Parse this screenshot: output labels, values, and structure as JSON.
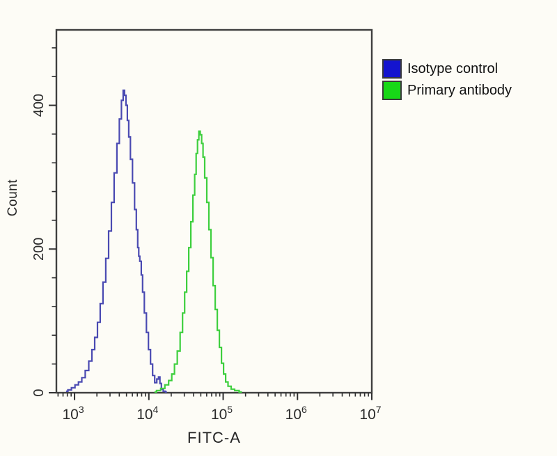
{
  "page": {
    "background": "#fdfcf6"
  },
  "axes": {
    "frame_color": "#3f3f3f",
    "tick_color": "#303030",
    "tick_label_color": "#2b2b2b"
  },
  "legend": {
    "border_color": "#3a3a3a",
    "items": [
      {
        "label": "Isotype control",
        "color": "#1414cf"
      },
      {
        "label": "Primary antibody",
        "color": "#17d817"
      }
    ]
  },
  "chart_data": {
    "type": "line",
    "subtype": "flow-cytometry-histogram-overlay",
    "title": "",
    "xlabel": "FITC-A",
    "ylabel": "Count",
    "x_scale": "log10",
    "xlim": [
      570,
      10000000
    ],
    "x_tick_exponents": [
      3,
      4,
      5,
      6,
      7
    ],
    "ylim": [
      0,
      505
    ],
    "y_major_ticks": [
      0,
      200,
      400
    ],
    "y_minor_tick_step": 40,
    "grid": false,
    "legend_position": "outside-top-right",
    "series": [
      {
        "name": "Isotype control",
        "color": "#4a4ab2",
        "x": [
          770,
          860,
          960,
          1070,
          1190,
          1320,
          1470,
          1640,
          1790,
          1950,
          2120,
          2310,
          2520,
          2750,
          3000,
          3270,
          3560,
          3880,
          4140,
          4420,
          4610,
          4810,
          5020,
          5250,
          5470,
          5830,
          6220,
          6640,
          6930,
          7240,
          7400,
          7730,
          8070,
          8410,
          8970,
          9570,
          10200,
          10900,
          11600,
          12400,
          13200,
          13800,
          14400,
          15100,
          16100,
          17500
        ],
        "counts": [
          2,
          4,
          7,
          11,
          15,
          21,
          31,
          44,
          60,
          77,
          98,
          124,
          154,
          187,
          225,
          265,
          306,
          347,
          381,
          407,
          421,
          414,
          400,
          379,
          356,
          325,
          292,
          255,
          227,
          202,
          190,
          183,
          164,
          140,
          111,
          84,
          60,
          40,
          24,
          14,
          19,
          22,
          13,
          5,
          2,
          1
        ]
      },
      {
        "name": "Primary antibody",
        "color": "#3ecf3e",
        "x": [
          11900,
          13500,
          15400,
          17500,
          19500,
          21200,
          23100,
          25200,
          27500,
          29300,
          31300,
          33300,
          35600,
          37900,
          40500,
          42300,
          44200,
          46100,
          48100,
          50200,
          52500,
          54700,
          58300,
          62200,
          66400,
          70800,
          75700,
          80700,
          86100,
          91800,
          98000,
          104500,
          111400,
          121300,
          135200,
          150700,
          178600
        ],
        "counts": [
          1,
          3,
          6,
          11,
          17,
          26,
          40,
          58,
          84,
          111,
          140,
          169,
          202,
          238,
          275,
          304,
          333,
          352,
          364,
          359,
          347,
          328,
          299,
          265,
          227,
          188,
          149,
          116,
          87,
          63,
          41,
          26,
          15,
          9,
          5,
          3,
          1
        ]
      }
    ]
  }
}
